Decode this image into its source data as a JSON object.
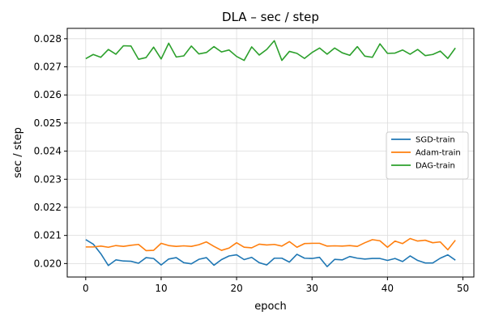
{
  "chart_data": {
    "type": "line",
    "title": "DLA – sec / step",
    "xlabel": "epoch",
    "ylabel": "sec / step",
    "xlim": [
      -2.45,
      51.45
    ],
    "ylim": [
      0.01952,
      0.02837
    ],
    "xticks": [
      0,
      10,
      20,
      30,
      40,
      50
    ],
    "xtick_labels": [
      "0",
      "10",
      "20",
      "30",
      "40",
      "50"
    ],
    "yticks": [
      0.02,
      0.021,
      0.022,
      0.023,
      0.024,
      0.025,
      0.026,
      0.027,
      0.028
    ],
    "ytick_labels": [
      "0.020",
      "0.021",
      "0.022",
      "0.023",
      "0.024",
      "0.025",
      "0.026",
      "0.027",
      "0.028"
    ],
    "grid": true,
    "legend_position": "center-right",
    "x": [
      0,
      1,
      2,
      3,
      4,
      5,
      6,
      7,
      8,
      9,
      10,
      11,
      12,
      13,
      14,
      15,
      16,
      17,
      18,
      19,
      20,
      21,
      22,
      23,
      24,
      25,
      26,
      27,
      28,
      29,
      30,
      31,
      32,
      33,
      34,
      35,
      36,
      37,
      38,
      39,
      40,
      41,
      42,
      43,
      44,
      45,
      46,
      47,
      48,
      49
    ],
    "series": [
      {
        "name": "SGD-train",
        "color": "#1f77b4",
        "values": [
          0.02085,
          0.02069,
          0.02035,
          0.01993,
          0.02013,
          0.02009,
          0.02008,
          0.02001,
          0.02021,
          0.02018,
          0.01995,
          0.02016,
          0.02021,
          0.02003,
          0.01999,
          0.02015,
          0.02021,
          0.01994,
          0.02014,
          0.02027,
          0.02031,
          0.02014,
          0.02022,
          0.02003,
          0.01995,
          0.02019,
          0.02019,
          0.02005,
          0.02033,
          0.02019,
          0.02018,
          0.02022,
          0.01989,
          0.02015,
          0.02013,
          0.02025,
          0.02019,
          0.02016,
          0.02018,
          0.02018,
          0.02011,
          0.02018,
          0.02007,
          0.02027,
          0.02011,
          0.02002,
          0.02002,
          0.02019,
          0.02031,
          0.02012
        ]
      },
      {
        "name": "Adam-train",
        "color": "#ff7f0e",
        "values": [
          0.02059,
          0.02059,
          0.02062,
          0.02058,
          0.02064,
          0.02061,
          0.02065,
          0.02068,
          0.02046,
          0.02047,
          0.02072,
          0.02064,
          0.02061,
          0.02063,
          0.02061,
          0.02067,
          0.02077,
          0.02061,
          0.02047,
          0.02055,
          0.02074,
          0.02058,
          0.02056,
          0.02069,
          0.02066,
          0.02068,
          0.02062,
          0.02078,
          0.02058,
          0.02071,
          0.02072,
          0.02072,
          0.02062,
          0.02063,
          0.02062,
          0.02064,
          0.02061,
          0.02074,
          0.02085,
          0.02081,
          0.02058,
          0.0208,
          0.02071,
          0.02089,
          0.0208,
          0.02083,
          0.02074,
          0.02077,
          0.02049,
          0.02083
        ]
      },
      {
        "name": "DAG-train",
        "color": "#2ca02c",
        "values": [
          0.02729,
          0.02744,
          0.02734,
          0.02762,
          0.02745,
          0.02775,
          0.02774,
          0.02727,
          0.02733,
          0.0277,
          0.02728,
          0.02784,
          0.02735,
          0.02739,
          0.02774,
          0.02746,
          0.02751,
          0.02772,
          0.02753,
          0.0276,
          0.02737,
          0.02723,
          0.02771,
          0.02742,
          0.02762,
          0.02793,
          0.02723,
          0.02755,
          0.02748,
          0.0273,
          0.02751,
          0.02767,
          0.02745,
          0.02767,
          0.0275,
          0.02741,
          0.02772,
          0.02738,
          0.02734,
          0.02782,
          0.02748,
          0.02749,
          0.0276,
          0.02745,
          0.02762,
          0.0274,
          0.02744,
          0.02756,
          0.0273,
          0.02767
        ]
      }
    ]
  }
}
